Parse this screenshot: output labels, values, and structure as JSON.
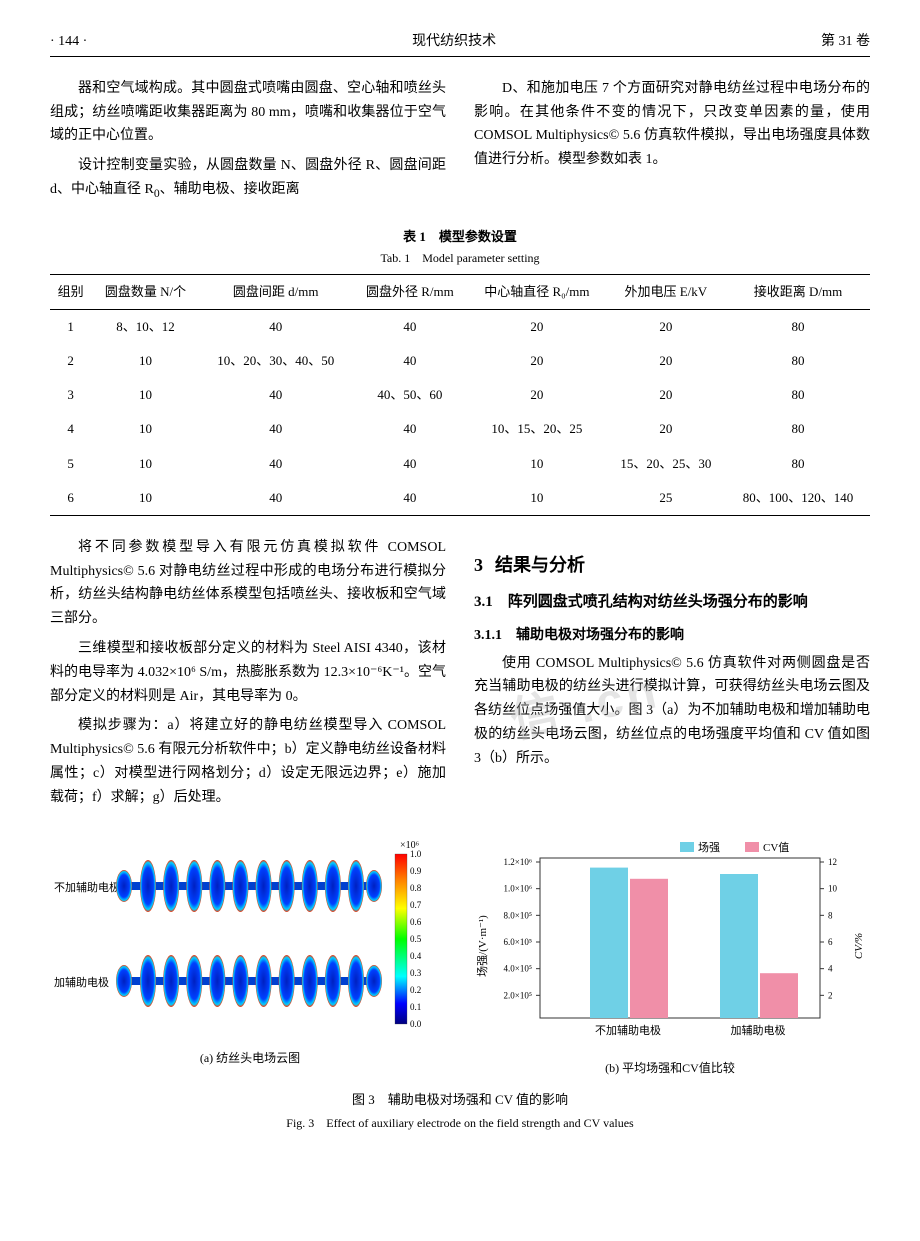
{
  "header": {
    "page_no_left": "· 144 ·",
    "journal": "现代纺织技术",
    "volume": "第 31 卷"
  },
  "para1_left": "器和空气域构成。其中圆盘式喷嘴由圆盘、空心轴和喷丝头组成；纺丝喷嘴距收集器距离为 80 mm，喷嘴和收集器位于空气域的正中心位置。",
  "para2_left_a": "设计控制变量实验，从圆盘数量 N、圆盘外径 R、圆盘间距 d、中心轴直径 R",
  "para2_left_b": "0",
  "para2_left_c": "、辅助电极、接收距离",
  "para1_right": "D、和施加电压 7 个方面研究对静电纺丝过程中电场分布的影响。在其他条件不变的情况下，只改变单因素的量，使用 COMSOL Multiphysics© 5.6 仿真软件模拟，导出电场强度具体数值进行分析。模型参数如表 1。",
  "table": {
    "title_cn": "表 1　模型参数设置",
    "title_en": "Tab. 1　Model parameter setting",
    "columns": [
      "组别",
      "圆盘数量 N/个",
      "圆盘间距 d/mm",
      "圆盘外径 R/mm",
      "中心轴直径 R₀/mm",
      "外加电压 E/kV",
      "接收距离 D/mm"
    ],
    "rows": [
      [
        "1",
        "8、10、12",
        "40",
        "40",
        "20",
        "20",
        "80"
      ],
      [
        "2",
        "10",
        "10、20、30、40、50",
        "40",
        "20",
        "20",
        "80"
      ],
      [
        "3",
        "10",
        "40",
        "40、50、60",
        "20",
        "20",
        "80"
      ],
      [
        "4",
        "10",
        "40",
        "40",
        "10、15、20、25",
        "20",
        "80"
      ],
      [
        "5",
        "10",
        "40",
        "40",
        "10",
        "15、20、25、30",
        "80"
      ],
      [
        "6",
        "10",
        "40",
        "40",
        "10",
        "25",
        "80、100、120、140"
      ]
    ]
  },
  "para3_left": "将不同参数模型导入有限元仿真模拟软件 COMSOL Multiphysics© 5.6 对静电纺丝过程中形成的电场分布进行模拟分析，纺丝头结构静电纺丝体系模型包括喷丝头、接收板和空气域三部分。",
  "para4_left": "三维模型和接收板部分定义的材料为 Steel AISI 4340，该材料的电导率为 4.032×10⁶ S/m，热膨胀系数为 12.3×10⁻⁶K⁻¹。空气部分定义的材料则是 Air，其电导率为 0。",
  "para5_left": "模拟步骤为：a）将建立好的静电纺丝模型导入 COMSOL Multiphysics© 5.6 有限元分析软件中；b）定义静电纺丝设备材料属性；c）对模型进行网格划分；d）设定无限远边界；e）施加载荷；f）求解；g）后处理。",
  "sec3": {
    "title": "结果与分析",
    "num": "3",
    "sub1_num": "3.1",
    "sub1_title": "阵列圆盘式喷孔结构对纺丝头场强分布的影响",
    "sub11_num": "3.1.1",
    "sub11_title": "辅助电极对场强分布的影响",
    "para": "使用 COMSOL Multiphysics© 5.6 仿真软件对两侧圆盘是否充当辅助电极的纺丝头进行模拟计算，可获得纺丝头电场云图及各纺丝位点场强值大小。图 3（a）为不加辅助电极和增加辅助电极的纺丝头电场云图，纺丝位点的电场强度平均值和 CV 值如图 3（b）所示。"
  },
  "fig3": {
    "left_label_1": "不加辅助电极",
    "left_label_2": "加辅助电极",
    "colorbar_top": "×10⁶",
    "colorbar_ticks": [
      "1.0",
      "0.9",
      "0.8",
      "0.7",
      "0.6",
      "0.5",
      "0.4",
      "0.3",
      "0.2",
      "0.1",
      "0.0"
    ],
    "sub_a": "(a) 纺丝头电场云图",
    "sub_b": "(b) 平均场强和CV值比较",
    "legend1": "场强",
    "legend2": "CV值",
    "y_label_left": "场强/(V·m⁻¹)",
    "y_label_right": "CV/%",
    "y_ticks_left": [
      "1.2×10⁶",
      "1.0×10⁶",
      "8.0×10⁵",
      "6.0×10⁵",
      "4.0×10⁵",
      "2.0×10⁵"
    ],
    "y_ticks_right": [
      "12",
      "10",
      "8",
      "6",
      "4",
      "2"
    ],
    "x_cats": [
      "不加辅助电极",
      "加辅助电极"
    ],
    "bar_color_field": "#6fd0e6",
    "bar_color_cv": "#f08fa8",
    "grid_color": "#333333",
    "field_vals_rel": [
      0.94,
      0.9
    ],
    "cv_vals_rel": [
      0.87,
      0.28
    ],
    "caption_cn": "图 3　辅助电极对场强和 CV 值的影响",
    "caption_en": "Fig. 3　Effect of auxiliary electrode on the field strength and CV values"
  },
  "watermark": "信 .cn"
}
